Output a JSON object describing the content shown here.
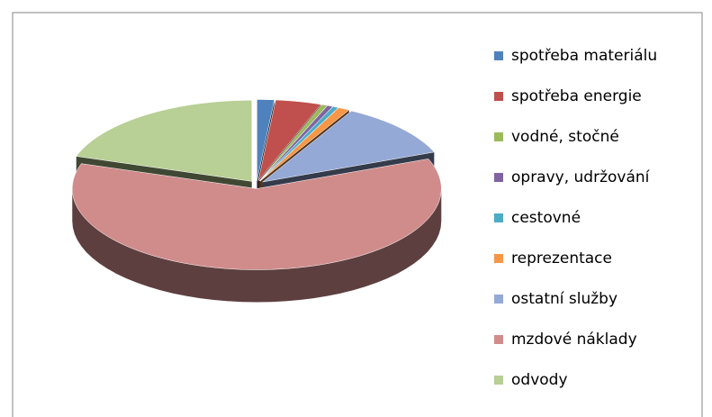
{
  "chart_data": {
    "type": "pie3d",
    "categories": [
      "spotřeba materiálu",
      "spotřeba energie",
      "vodné, stočné",
      "opravy, udržování",
      "cestovné",
      "reprezentace",
      "ostatní služby",
      "mzdové náklady",
      "odvody"
    ],
    "values": [
      1.5,
      4,
      0.5,
      0.5,
      0.5,
      1,
      11,
      61,
      20
    ],
    "colors": [
      "#4F81BD",
      "#C0504D",
      "#9BBB59",
      "#8064A2",
      "#4BACC6",
      "#F79646",
      "#95A9D6",
      "#D08C8B",
      "#B8CF95"
    ]
  }
}
